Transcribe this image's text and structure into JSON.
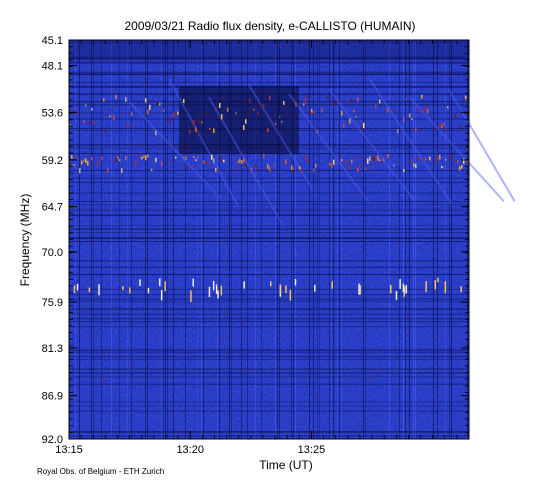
{
  "chart_data": {
    "type": "heatmap",
    "title": "2009/03/21  Radio flux density, e-CALLISTO (HUMAIN)",
    "xlabel": "Time (UT)",
    "ylabel": "Frequency (MHz)",
    "x_ticks": [
      "13:15",
      "13:20",
      "13:25"
    ],
    "y_ticks": [
      "45.1",
      "48.1",
      "53.6",
      "59.2",
      "64.7",
      "70.0",
      "75.9",
      "81.3",
      "86.9",
      "92.0"
    ],
    "x_range_minutes": [
      0,
      16.5
    ],
    "ylim": [
      45.1,
      92.0
    ],
    "y_axis_inverted": true,
    "colormap": [
      "#0a0a4a",
      "#1f2fb8",
      "#3a48e0",
      "#b02020",
      "#ff7a10",
      "#ffe060",
      "#ffffff"
    ],
    "features": [
      {
        "type": "band",
        "freq_range_mhz": [
          51.5,
          56
        ],
        "intensity": "high"
      },
      {
        "type": "band",
        "freq_range_mhz": [
          58.5,
          60.5
        ],
        "intensity": "high"
      },
      {
        "type": "spikes",
        "freq_range_mhz": [
          73,
          76
        ],
        "intensity": "medium"
      }
    ]
  },
  "footer": {
    "credit": "Royal Obs. of Belgium - ETH Zurich"
  }
}
